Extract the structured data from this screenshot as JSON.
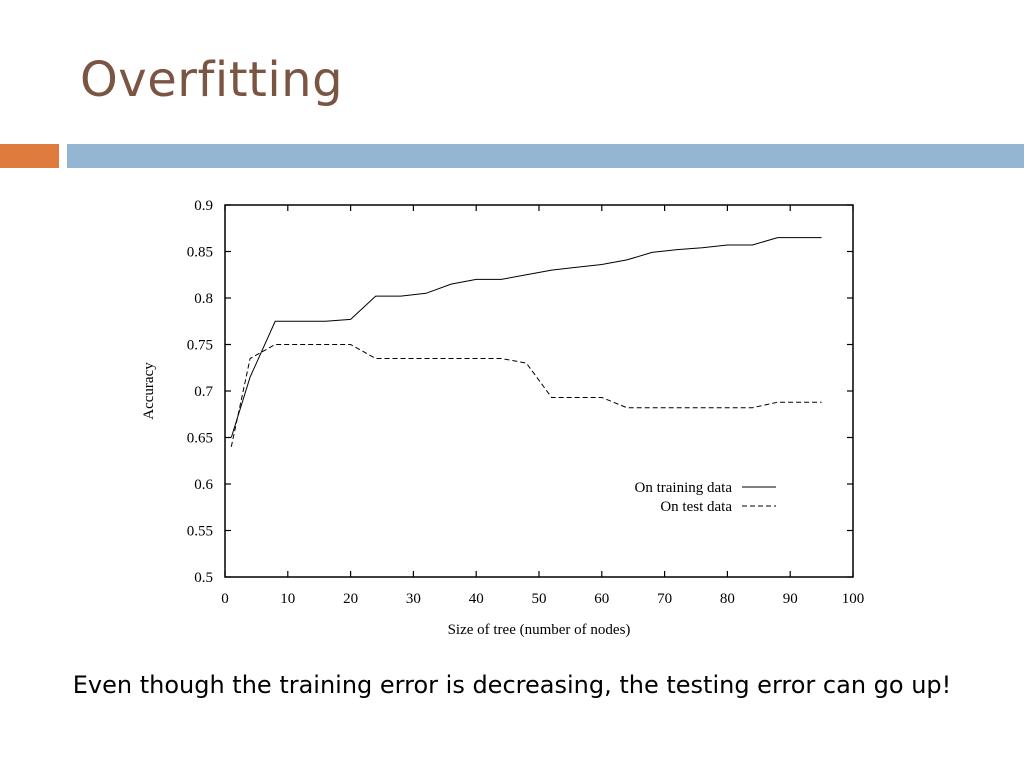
{
  "slide": {
    "title": "Overfitting",
    "caption": "Even though the training error is decreasing, the testing error can go up!",
    "accent_colors": {
      "title": "#7a5544",
      "orange_bar": "#e07b3e",
      "blue_bar": "#94b6d2"
    }
  },
  "chart_data": {
    "type": "line",
    "title": "",
    "xlabel": "Size of tree (number of nodes)",
    "ylabel": "Accuracy",
    "xlim": [
      0,
      100
    ],
    "ylim": [
      0.5,
      0.9
    ],
    "xticks": [
      "0",
      "10",
      "20",
      "30",
      "40",
      "50",
      "60",
      "70",
      "80",
      "90",
      "100"
    ],
    "yticks": [
      "0.5",
      "0.55",
      "0.6",
      "0.65",
      "0.7",
      "0.75",
      "0.8",
      "0.85",
      "0.9"
    ],
    "grid": false,
    "legend_position": "lower-right",
    "series": [
      {
        "name": "On training data",
        "style": "solid",
        "x": [
          1,
          4,
          8,
          12,
          16,
          20,
          24,
          28,
          32,
          36,
          40,
          44,
          48,
          52,
          56,
          60,
          64,
          68,
          72,
          76,
          80,
          84,
          88,
          92,
          95
        ],
        "y": [
          0.65,
          0.715,
          0.775,
          0.775,
          0.775,
          0.777,
          0.802,
          0.802,
          0.805,
          0.815,
          0.82,
          0.82,
          0.825,
          0.83,
          0.833,
          0.836,
          0.841,
          0.849,
          0.852,
          0.854,
          0.857,
          0.857,
          0.865,
          0.865,
          0.865
        ]
      },
      {
        "name": "On test data",
        "style": "dashed",
        "x": [
          1,
          4,
          8,
          12,
          16,
          20,
          24,
          28,
          32,
          36,
          40,
          44,
          48,
          52,
          56,
          60,
          64,
          68,
          72,
          76,
          80,
          84,
          88,
          92,
          95
        ],
        "y": [
          0.64,
          0.735,
          0.75,
          0.75,
          0.75,
          0.75,
          0.735,
          0.735,
          0.735,
          0.735,
          0.735,
          0.735,
          0.73,
          0.693,
          0.693,
          0.693,
          0.682,
          0.682,
          0.682,
          0.682,
          0.682,
          0.682,
          0.688,
          0.688,
          0.688
        ]
      }
    ]
  }
}
